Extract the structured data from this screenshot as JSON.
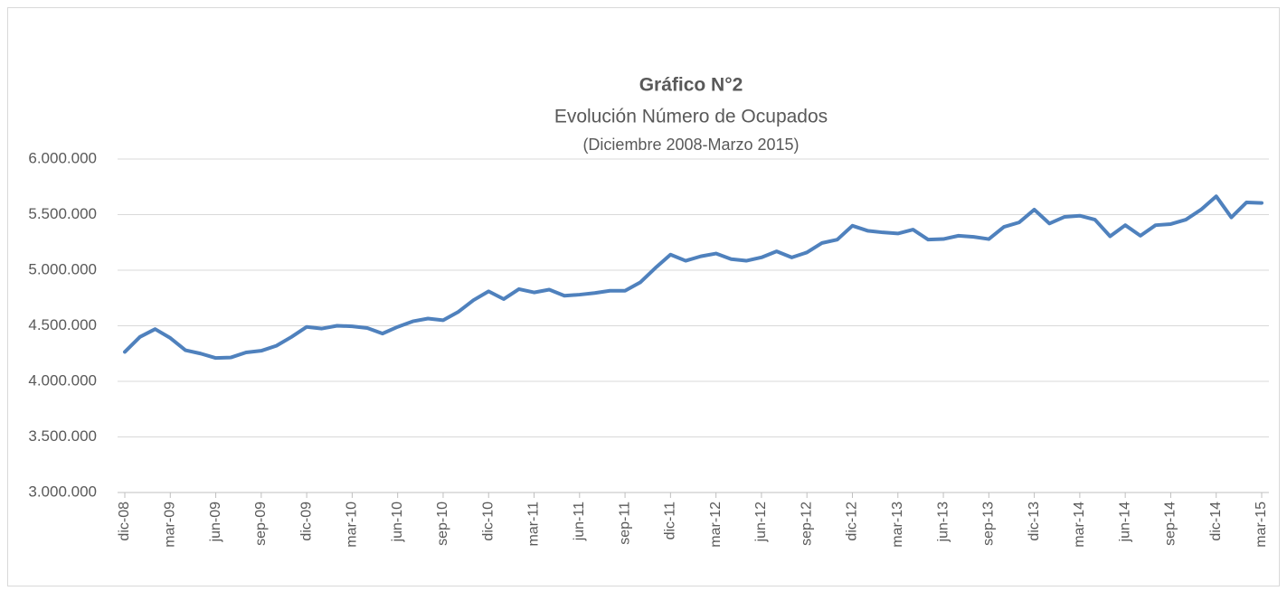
{
  "chart_data": {
    "type": "line",
    "title": "Gráfico N°2",
    "subtitle": "Evolución Número de Ocupados",
    "subtitle2": "(Diciembre 2008-Marzo 2015)",
    "categories": [
      "dic-08",
      null,
      null,
      "mar-09",
      null,
      null,
      "jun-09",
      null,
      null,
      "sep-09",
      null,
      null,
      "dic-09",
      null,
      null,
      "mar-10",
      null,
      null,
      "jun-10",
      null,
      null,
      "sep-10",
      null,
      null,
      "dic-10",
      null,
      null,
      "mar-11",
      null,
      null,
      "jun-11",
      null,
      null,
      "sep-11",
      null,
      null,
      "dic-11",
      null,
      null,
      "mar-12",
      null,
      null,
      "jun-12",
      null,
      null,
      "sep-12",
      null,
      null,
      "dic-12",
      null,
      null,
      "mar-13",
      null,
      null,
      "jun-13",
      null,
      null,
      "sep-13",
      null,
      null,
      "dic-13",
      null,
      null,
      "mar-14",
      null,
      null,
      "jun-14",
      null,
      null,
      "sep-14",
      null,
      null,
      "dic-14",
      null,
      null,
      "mar-15"
    ],
    "series": [
      {
        "name": "Ocupados",
        "color": "#4f81bd",
        "values": [
          4265000,
          4400000,
          4470000,
          4390000,
          4280000,
          4250000,
          4210000,
          4215000,
          4260000,
          4275000,
          4320000,
          4400000,
          4490000,
          4475000,
          4500000,
          4495000,
          4480000,
          4430000,
          4490000,
          4540000,
          4565000,
          4550000,
          4625000,
          4730000,
          4810000,
          4740000,
          4830000,
          4800000,
          4825000,
          4770000,
          4780000,
          4795000,
          4815000,
          4815000,
          4890000,
          5020000,
          5140000,
          5085000,
          5125000,
          5150000,
          5100000,
          5085000,
          5115000,
          5170000,
          5115000,
          5160000,
          5245000,
          5275000,
          5400000,
          5355000,
          5340000,
          5330000,
          5365000,
          5275000,
          5280000,
          5310000,
          5300000,
          5280000,
          5390000,
          5430000,
          5545000,
          5420000,
          5480000,
          5490000,
          5455000,
          5305000,
          5405000,
          5310000,
          5405000,
          5415000,
          5455000,
          5545000,
          5665000,
          5475000,
          5610000,
          5605000
        ]
      }
    ],
    "ylim": [
      3000000,
      6000000
    ],
    "yticks": [
      {
        "value": 3000000,
        "label": "3.000.000"
      },
      {
        "value": 3500000,
        "label": "3.500.000"
      },
      {
        "value": 4000000,
        "label": "4.000.000"
      },
      {
        "value": 4500000,
        "label": "4.500.000"
      },
      {
        "value": 5000000,
        "label": "5.000.000"
      },
      {
        "value": 5500000,
        "label": "5.500.000"
      },
      {
        "value": 6000000,
        "label": "6.000.000"
      }
    ],
    "grid": true
  }
}
